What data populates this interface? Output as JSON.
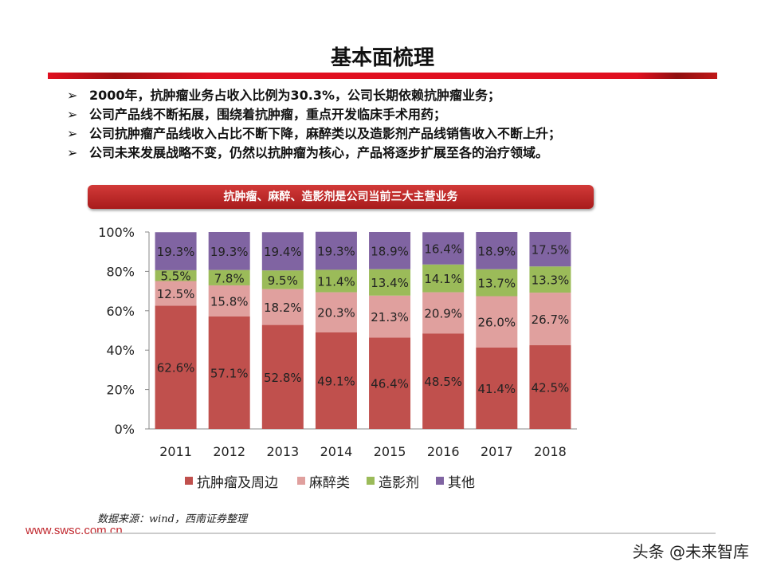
{
  "title": "基本面梳理",
  "bullets": [
    "2000年，抗肿瘤业务占收入比例为30.3%，公司长期依赖抗肿瘤业务；",
    "公司产品线不断拓展，围绕着抗肿瘤，重点开发临床手术用药；",
    "公司抗肿瘤产品线收入占比不断下降，麻醉类以及造影剂产品线销售收入不断上升；",
    "公司未来发展战略不变，仍然以抗肿瘤为核心，产品将逐步扩展至各的治疗领域。"
  ],
  "bullet_icon": "arrow-right-icon",
  "chart_data": {
    "type": "bar",
    "stacked": true,
    "title": "抗肿瘤、麻醉、造影剂是公司当前三大主营业务",
    "categories": [
      "2011",
      "2012",
      "2013",
      "2014",
      "2015",
      "2016",
      "2017",
      "2018"
    ],
    "yticks": [
      "0%",
      "20%",
      "40%",
      "60%",
      "80%",
      "100%"
    ],
    "ylim": [
      0,
      100
    ],
    "legend_position": "bottom",
    "series": [
      {
        "name": "抗肿瘤及周边",
        "color": "#c0504d",
        "values": [
          62.6,
          57.1,
          52.8,
          49.1,
          46.4,
          48.5,
          41.4,
          42.5
        ],
        "labels": [
          "62.6%",
          "57.1%",
          "52.8%",
          "49.1%",
          "46.4%",
          "48.5%",
          "41.4%",
          "42.5%"
        ]
      },
      {
        "name": "麻醉类",
        "color": "#e0a09e",
        "values": [
          12.5,
          15.8,
          18.2,
          20.3,
          21.3,
          20.9,
          26.0,
          26.7
        ],
        "labels": [
          "12.5%",
          "15.8%",
          "18.2%",
          "20.3%",
          "21.3%",
          "20.9%",
          "26.0%",
          "26.7%"
        ]
      },
      {
        "name": "造影剂",
        "color": "#9bbb59",
        "values": [
          5.5,
          7.8,
          9.5,
          11.4,
          13.4,
          14.1,
          13.7,
          13.3
        ],
        "labels": [
          "5.5%",
          "7.8%",
          "9.5%",
          "11.4%",
          "13.4%",
          "14.1%",
          "13.7%",
          "13.3%"
        ]
      },
      {
        "name": "其他",
        "color": "#8064a2",
        "values": [
          19.3,
          19.3,
          19.4,
          19.3,
          18.9,
          16.4,
          18.9,
          17.5
        ],
        "labels": [
          "19.3%",
          "19.3%",
          "19.4%",
          "19.3%",
          "18.9%",
          "16.4%",
          "18.9%",
          "17.5%"
        ]
      }
    ]
  },
  "footer": {
    "source": "数据来源：wind，西南证券整理",
    "site": "www.swsc.com.cn",
    "watermark": "头条 @未来智库"
  }
}
